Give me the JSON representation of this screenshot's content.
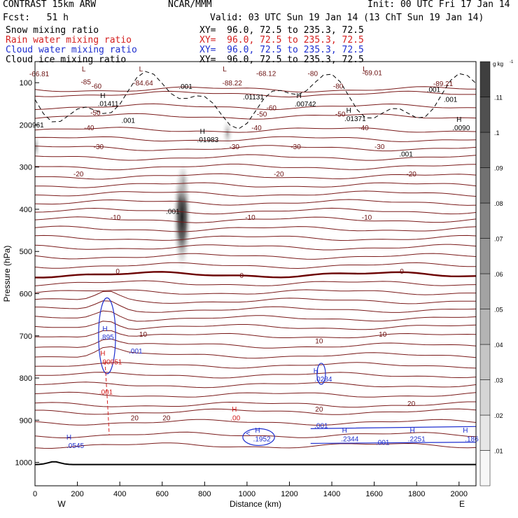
{
  "header": {
    "model": "CONTRAST 15km ARW",
    "org": "NCAR/MMM",
    "init": "Init: 00 UTC Fri 17 Jan 14",
    "fcst": "Fcst:   51 h",
    "valid": "Valid: 03 UTC Sun 19 Jan 14 (13 ChT Sun 19 Jan 14)"
  },
  "legend": [
    {
      "name": "Snow mixing ratio",
      "xy": "XY=  96.0, 72.5 to 235.3, 72.5",
      "color": "#000000"
    },
    {
      "name": "Rain water mixing ratio",
      "xy": "XY=  96.0, 72.5 to 235.3, 72.5",
      "color": "#d42020"
    },
    {
      "name": "Cloud water mixing ratio",
      "xy": "XY=  96.0, 72.5 to 235.3, 72.5",
      "color": "#1f2fcf"
    },
    {
      "name": "Cloud ice mixing ratio",
      "xy": "XY=  96.0, 72.5 to 235.3, 72.5",
      "color": "#000000"
    }
  ],
  "chart_data": {
    "type": "heatmap",
    "xlabel": "Distance (km)",
    "ylabel": "Pressure (hPa)",
    "x_ticks": [
      0,
      200,
      400,
      600,
      800,
      1000,
      1200,
      1400,
      1600,
      1800,
      2000
    ],
    "y_ticks": [
      100,
      200,
      300,
      400,
      500,
      600,
      700,
      800,
      900,
      1000
    ],
    "xlim": [
      0,
      2080
    ],
    "ylim": [
      50,
      1050
    ],
    "x_end_labels": {
      "left": "W",
      "right": "E"
    },
    "colorbar": {
      "unit": "g kg",
      "unit_sup": "-1",
      "ticks": [
        ".01",
        ".02",
        ".03",
        ".04",
        ".05",
        ".06",
        ".07",
        ".08",
        ".09",
        ".1",
        ".11"
      ],
      "values": [
        0.01,
        0.02,
        0.03,
        0.04,
        0.05,
        0.06,
        0.07,
        0.08,
        0.09,
        0.1,
        0.11
      ]
    },
    "temperature_contours": [
      {
        "level": -85,
        "p": 116
      },
      {
        "level": -80,
        "p": 127
      },
      {
        "level": -60,
        "p": 157
      },
      {
        "level": -50,
        "p": 180
      },
      {
        "level": -40,
        "p": 212
      },
      {
        "level": -30,
        "p": 255
      },
      {
        "level": -20,
        "p": 322
      },
      {
        "level": -10,
        "p": 425
      },
      {
        "level": 0,
        "p": 555
      },
      {
        "level": 10,
        "p": 700
      },
      {
        "level": 20,
        "p": 863
      }
    ],
    "extrema_labels": [
      {
        "text": "-66.81",
        "x": 20,
        "p": 85
      },
      {
        "text": "L",
        "x": 230,
        "p": 73
      },
      {
        "text": "-85",
        "x": 240,
        "p": 104
      },
      {
        "text": "L",
        "x": 500,
        "p": 73
      },
      {
        "text": "-84.64",
        "x": 510,
        "p": 106
      },
      {
        "text": "L",
        "x": 895,
        "p": 73
      },
      {
        "text": "-88.22",
        "x": 930,
        "p": 106
      },
      {
        "text": "-68.12",
        "x": 1090,
        "p": 84
      },
      {
        "text": "-80",
        "x": 1310,
        "p": 84
      },
      {
        "text": "L",
        "x": 1555,
        "p": 73
      },
      {
        "text": "-69.01",
        "x": 1590,
        "p": 82
      },
      {
        "text": "-89.21",
        "x": 1925,
        "p": 108
      },
      {
        "text": "-60",
        "x": 290,
        "p": 114
      },
      {
        "text": "-80",
        "x": 1430,
        "p": 114
      },
      {
        "text": "-60",
        "x": 1115,
        "p": 165
      },
      {
        "text": "-50",
        "x": 285,
        "p": 177
      },
      {
        "text": "-50",
        "x": 1070,
        "p": 180
      },
      {
        "text": "-50",
        "x": 1440,
        "p": 180
      },
      {
        "text": "-40",
        "x": 255,
        "p": 213
      },
      {
        "text": "-40",
        "x": 1045,
        "p": 213
      },
      {
        "text": "-40",
        "x": 1550,
        "p": 213
      },
      {
        "text": "-30",
        "x": 300,
        "p": 257
      },
      {
        "text": "-30",
        "x": 940,
        "p": 257
      },
      {
        "text": "-30",
        "x": 1230,
        "p": 257
      },
      {
        "text": "-30",
        "x": 1625,
        "p": 257
      },
      {
        "text": "-20",
        "x": 205,
        "p": 322
      },
      {
        "text": "-20",
        "x": 1150,
        "p": 322
      },
      {
        "text": "-20",
        "x": 1775,
        "p": 322
      },
      {
        "text": "-10",
        "x": 380,
        "p": 425
      },
      {
        "text": "-10",
        "x": 1015,
        "p": 425
      },
      {
        "text": "-10",
        "x": 1565,
        "p": 425
      },
      {
        "text": "0",
        "x": 390,
        "p": 553
      },
      {
        "text": "0",
        "x": 975,
        "p": 563
      },
      {
        "text": "0",
        "x": 1730,
        "p": 553
      },
      {
        "text": "10",
        "x": 510,
        "p": 702
      },
      {
        "text": "10",
        "x": 1340,
        "p": 718
      },
      {
        "text": "10",
        "x": 1640,
        "p": 702
      },
      {
        "text": "20",
        "x": 470,
        "p": 900
      },
      {
        "text": "20",
        "x": 620,
        "p": 900
      },
      {
        "text": "20",
        "x": 1340,
        "p": 880
      },
      {
        "text": "20",
        "x": 1775,
        "p": 866
      }
    ],
    "snow_labels": [
      {
        "text": "H",
        "x": 320,
        "p": 136
      },
      {
        "text": ".01411",
        "x": 345,
        "p": 155
      },
      {
        "text": ".001",
        "x": 440,
        "p": 195
      },
      {
        "text": ".001",
        "x": 710,
        "p": 115
      },
      {
        "text": ".01131",
        "x": 1030,
        "p": 140
      },
      {
        "text": "H",
        "x": 1245,
        "p": 136
      },
      {
        "text": ".00742",
        "x": 1275,
        "p": 156
      },
      {
        "text": "H",
        "x": 1480,
        "p": 171
      },
      {
        "text": ".01371",
        "x": 1510,
        "p": 191
      },
      {
        "text": ".001",
        "x": 1880,
        "p": 122
      },
      {
        "text": ".001",
        "x": 1960,
        "p": 145
      },
      {
        "text": "H",
        "x": 2000,
        "p": 193
      },
      {
        "text": ".0090",
        "x": 2010,
        "p": 213
      },
      {
        "text": ".001",
        "x": 1750,
        "p": 275
      },
      {
        "text": ".961",
        "x": 10,
        "p": 206
      },
      {
        "text": "H",
        "x": 790,
        "p": 221
      },
      {
        "text": ".01983",
        "x": 815,
        "p": 241
      },
      {
        "text": ".001",
        "x": 650,
        "p": 411
      }
    ],
    "rain_labels": [
      {
        "text": "H",
        "x": 320,
        "p": 747
      },
      {
        "text": ".00951",
        "x": 360,
        "p": 768
      },
      {
        "text": ".001",
        "x": 335,
        "p": 839
      },
      {
        "text": "H",
        "x": 940,
        "p": 880
      },
      {
        "text": ".00",
        "x": 945,
        "p": 900
      }
    ],
    "cloud_water_labels": [
      {
        "text": "H",
        "x": 330,
        "p": 689
      },
      {
        "text": ".895",
        "x": 340,
        "p": 709
      },
      {
        "text": ".001",
        "x": 475,
        "p": 742
      },
      {
        "text": "H",
        "x": 1325,
        "p": 788
      },
      {
        "text": ".0284",
        "x": 1360,
        "p": 808
      },
      {
        "text": ".001",
        "x": 1350,
        "p": 919
      },
      {
        "text": "<",
        "x": 1005,
        "p": 937
      },
      {
        "text": "H",
        "x": 1050,
        "p": 929
      },
      {
        "text": ".1952",
        "x": 1070,
        "p": 950
      },
      {
        "text": "H",
        "x": 1460,
        "p": 929
      },
      {
        "text": ".2344",
        "x": 1485,
        "p": 950
      },
      {
        "text": ".001",
        "x": 1640,
        "p": 958
      },
      {
        "text": "H",
        "x": 1780,
        "p": 929
      },
      {
        "text": ".2251",
        "x": 1800,
        "p": 950
      },
      {
        "text": "H",
        "x": 2030,
        "p": 929
      },
      {
        "text": ".186",
        "x": 2060,
        "p": 950
      },
      {
        "text": "H",
        "x": 160,
        "p": 946
      },
      {
        "text": ".0545",
        "x": 190,
        "p": 966
      }
    ]
  }
}
